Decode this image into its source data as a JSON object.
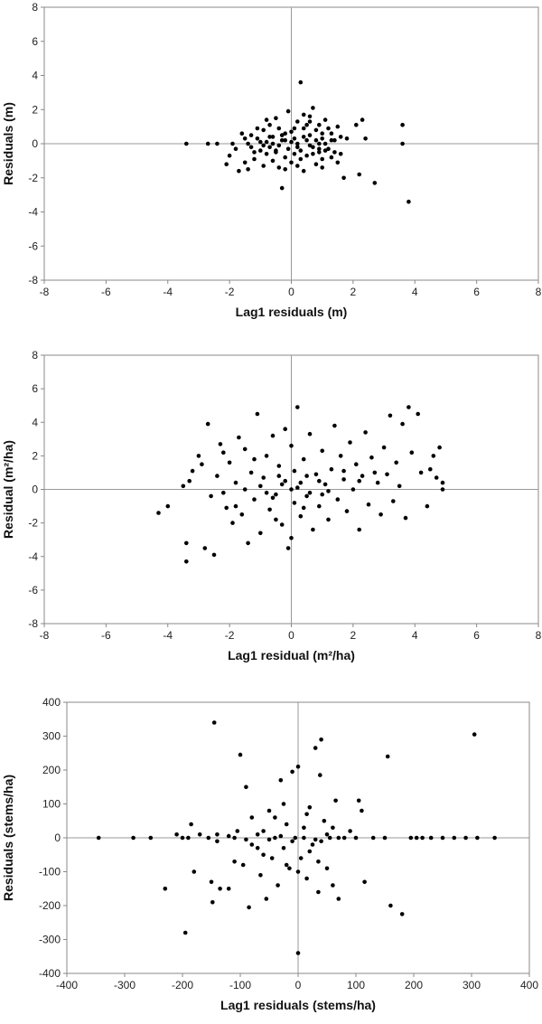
{
  "chart_data": [
    {
      "type": "scatter",
      "xlabel": "Lag1 residuals (m)",
      "ylabel": "Residuals (m)",
      "xlim": [
        -8,
        8
      ],
      "ylim": [
        -8,
        8
      ],
      "xticks": [
        -8,
        -6,
        -4,
        -2,
        0,
        2,
        4,
        6,
        8
      ],
      "yticks": [
        -8,
        -6,
        -4,
        -2,
        0,
        2,
        4,
        6,
        8
      ],
      "grid": false,
      "points": [
        [
          -3.4,
          0
        ],
        [
          -2.7,
          0
        ],
        [
          -2.4,
          0
        ],
        [
          -2.1,
          -1.2
        ],
        [
          -1.9,
          0
        ],
        [
          -1.7,
          -1.6
        ],
        [
          -1.6,
          0.6
        ],
        [
          -1.5,
          -1.1
        ],
        [
          -1.4,
          0
        ],
        [
          -1.3,
          0.5
        ],
        [
          -1.2,
          -0.9
        ],
        [
          -1.1,
          0.3
        ],
        [
          -1.0,
          -0.4
        ],
        [
          -0.9,
          0.8
        ],
        [
          -0.9,
          -1.3
        ],
        [
          -0.8,
          0.1
        ],
        [
          -0.8,
          -0.6
        ],
        [
          -0.7,
          1.1
        ],
        [
          -0.7,
          -0.2
        ],
        [
          -0.6,
          0.4
        ],
        [
          -0.6,
          -1.0
        ],
        [
          -0.5,
          1.5
        ],
        [
          -0.5,
          -0.5
        ],
        [
          -0.4,
          0.9
        ],
        [
          -0.4,
          -1.4
        ],
        [
          -0.3,
          0.2
        ],
        [
          -0.3,
          -2.6
        ],
        [
          -0.2,
          0.6
        ],
        [
          -0.2,
          -0.8
        ],
        [
          -0.1,
          1.9
        ],
        [
          -0.1,
          -0.3
        ],
        [
          0.0,
          0.7
        ],
        [
          0.0,
          -1.1
        ],
        [
          0.1,
          0.3
        ],
        [
          0.1,
          -0.6
        ],
        [
          0.2,
          1.3
        ],
        [
          0.2,
          0
        ],
        [
          0.3,
          3.6
        ],
        [
          0.3,
          -0.4
        ],
        [
          0.4,
          0.9
        ],
        [
          0.4,
          -1.6
        ],
        [
          0.5,
          0.2
        ],
        [
          0.5,
          -0.7
        ],
        [
          0.6,
          1.6
        ],
        [
          0.6,
          0.5
        ],
        [
          0.7,
          -0.2
        ],
        [
          0.7,
          2.1
        ],
        [
          0.8,
          -1.2
        ],
        [
          0.8,
          0.8
        ],
        [
          0.9,
          -0.5
        ],
        [
          0.9,
          1.1
        ],
        [
          1.0,
          0.3
        ],
        [
          1.0,
          -0.9
        ],
        [
          1.1,
          1.4
        ],
        [
          1.1,
          0
        ],
        [
          1.2,
          -0.3
        ],
        [
          1.3,
          0.6
        ],
        [
          1.3,
          -0.8
        ],
        [
          1.4,
          0.2
        ],
        [
          1.5,
          1.0
        ],
        [
          1.5,
          -1.1
        ],
        [
          1.6,
          0.4
        ],
        [
          1.7,
          -2.0
        ],
        [
          1.8,
          0.3
        ],
        [
          2.1,
          1.1
        ],
        [
          2.2,
          -1.8
        ],
        [
          2.3,
          1.4
        ],
        [
          2.4,
          0.3
        ],
        [
          2.7,
          -2.3
        ],
        [
          3.6,
          1.1
        ],
        [
          3.6,
          0
        ],
        [
          3.8,
          -3.4
        ],
        [
          -1.3,
          -0.2
        ],
        [
          -1.0,
          0.1
        ],
        [
          -0.7,
          0.4
        ],
        [
          -0.4,
          -0.1
        ],
        [
          -0.2,
          0.2
        ],
        [
          0.0,
          0.1
        ],
        [
          0.2,
          -0.2
        ],
        [
          0.4,
          0.4
        ],
        [
          0.6,
          -0.1
        ],
        [
          0.8,
          0.2
        ],
        [
          1.0,
          0.6
        ],
        [
          1.2,
          0.9
        ],
        [
          -1.5,
          0.3
        ],
        [
          -1.2,
          -0.5
        ],
        [
          -0.9,
          -0.1
        ],
        [
          -0.6,
          0
        ],
        [
          -0.3,
          0.5
        ],
        [
          0.1,
          0.9
        ],
        [
          0.3,
          -0.9
        ],
        [
          0.5,
          1.1
        ],
        [
          0.7,
          -0.6
        ],
        [
          0.9,
          0.0
        ],
        [
          1.1,
          -0.4
        ],
        [
          1.3,
          0.2
        ],
        [
          -1.8,
          -0.3
        ],
        [
          -1.1,
          0.9
        ],
        [
          -0.5,
          -0.4
        ],
        [
          0.2,
          -1.3
        ],
        [
          0.6,
          1.3
        ],
        [
          1.0,
          -1.4
        ],
        [
          1.4,
          -0.5
        ],
        [
          -0.8,
          1.4
        ],
        [
          -0.2,
          -1.5
        ],
        [
          0.4,
          1.7
        ],
        [
          0.9,
          -0.3
        ],
        [
          1.6,
          -0.6
        ],
        [
          -2.0,
          -0.7
        ],
        [
          -1.4,
          -1.5
        ]
      ]
    },
    {
      "type": "scatter",
      "xlabel": "Lag1 residual (m²/ha)",
      "ylabel": "Residual (m²/ha)",
      "xlim": [
        -8,
        8
      ],
      "ylim": [
        -8,
        8
      ],
      "xticks": [
        -8,
        -6,
        -4,
        -2,
        0,
        2,
        4,
        6,
        8
      ],
      "yticks": [
        -8,
        -6,
        -4,
        -2,
        0,
        2,
        4,
        6,
        8
      ],
      "grid": false,
      "points": [
        [
          -4.3,
          -1.4
        ],
        [
          -4.0,
          -1.0
        ],
        [
          -3.5,
          0.2
        ],
        [
          -3.4,
          -3.2
        ],
        [
          -3.4,
          -4.3
        ],
        [
          -3.3,
          0.5
        ],
        [
          -3.2,
          1.1
        ],
        [
          -3.0,
          2.0
        ],
        [
          -2.9,
          1.5
        ],
        [
          -2.8,
          -3.5
        ],
        [
          -2.7,
          3.9
        ],
        [
          -2.6,
          -0.4
        ],
        [
          -2.5,
          -3.9
        ],
        [
          -2.4,
          0.8
        ],
        [
          -2.3,
          2.7
        ],
        [
          -2.2,
          2.2
        ],
        [
          -2.1,
          -1.1
        ],
        [
          -2.0,
          1.6
        ],
        [
          -1.9,
          -2.0
        ],
        [
          -1.8,
          0.4
        ],
        [
          -1.7,
          3.1
        ],
        [
          -1.6,
          -1.5
        ],
        [
          -1.5,
          2.4
        ],
        [
          -1.4,
          -3.2
        ],
        [
          -1.3,
          1.0
        ],
        [
          -1.2,
          -0.6
        ],
        [
          -1.1,
          4.5
        ],
        [
          -1.0,
          -2.6
        ],
        [
          -0.9,
          0.7
        ],
        [
          -0.8,
          2.0
        ],
        [
          -0.7,
          -1.2
        ],
        [
          -0.6,
          3.2
        ],
        [
          -0.5,
          -0.3
        ],
        [
          -0.4,
          1.4
        ],
        [
          -0.3,
          -2.1
        ],
        [
          -0.2,
          0.5
        ],
        [
          -0.1,
          -3.5
        ],
        [
          0.0,
          2.6
        ],
        [
          0.1,
          -0.8
        ],
        [
          0.2,
          4.9
        ],
        [
          0.2,
          0.1
        ],
        [
          0.3,
          -1.6
        ],
        [
          0.4,
          1.8
        ],
        [
          0.5,
          -0.4
        ],
        [
          0.6,
          3.3
        ],
        [
          0.7,
          -2.4
        ],
        [
          0.8,
          0.9
        ],
        [
          0.9,
          -1.0
        ],
        [
          1.0,
          2.3
        ],
        [
          1.1,
          0.3
        ],
        [
          1.2,
          -1.8
        ],
        [
          1.3,
          1.2
        ],
        [
          1.4,
          3.8
        ],
        [
          1.5,
          -0.6
        ],
        [
          1.6,
          2.0
        ],
        [
          1.7,
          0.6
        ],
        [
          1.8,
          -1.3
        ],
        [
          1.9,
          2.8
        ],
        [
          2.0,
          0.0
        ],
        [
          2.1,
          1.5
        ],
        [
          2.2,
          -2.4
        ],
        [
          2.3,
          0.8
        ],
        [
          2.4,
          3.4
        ],
        [
          2.5,
          -0.9
        ],
        [
          2.6,
          1.9
        ],
        [
          2.8,
          0.4
        ],
        [
          2.9,
          -1.5
        ],
        [
          3.0,
          2.5
        ],
        [
          3.1,
          0.9
        ],
        [
          3.2,
          4.4
        ],
        [
          3.3,
          -0.7
        ],
        [
          3.4,
          1.6
        ],
        [
          3.5,
          0.2
        ],
        [
          3.6,
          3.9
        ],
        [
          3.7,
          -1.7
        ],
        [
          3.8,
          4.9
        ],
        [
          3.9,
          2.2
        ],
        [
          4.1,
          4.5
        ],
        [
          4.2,
          1.0
        ],
        [
          4.4,
          -1.0
        ],
        [
          4.6,
          2.0
        ],
        [
          4.7,
          0.7
        ],
        [
          4.8,
          2.5
        ],
        [
          4.9,
          0.4
        ],
        [
          4.9,
          0.0
        ],
        [
          4.5,
          1.2
        ],
        [
          -1.5,
          0.0
        ],
        [
          -1.0,
          0.2
        ],
        [
          -0.6,
          -0.5
        ],
        [
          -0.3,
          0.3
        ],
        [
          0.0,
          0.0
        ],
        [
          0.3,
          0.4
        ],
        [
          0.6,
          -0.2
        ],
        [
          0.9,
          0.5
        ],
        [
          1.2,
          -0.1
        ],
        [
          -0.8,
          -0.2
        ],
        [
          -0.4,
          0.8
        ],
        [
          0.1,
          1.1
        ],
        [
          0.5,
          0.8
        ],
        [
          -1.2,
          1.8
        ],
        [
          -0.5,
          -1.8
        ],
        [
          0.4,
          -1.1
        ],
        [
          1.0,
          -0.3
        ],
        [
          1.7,
          1.1
        ],
        [
          2.2,
          0.5
        ],
        [
          2.7,
          1.0
        ],
        [
          -1.8,
          -1.0
        ],
        [
          -2.2,
          -0.2
        ],
        [
          0.0,
          -2.9
        ],
        [
          -0.2,
          3.6
        ]
      ]
    },
    {
      "type": "scatter",
      "xlabel": "Lag1 residuals (stems/ha)",
      "ylabel": "Residuals (stems/ha)",
      "xlim": [
        -400,
        400
      ],
      "ylim": [
        -400,
        400
      ],
      "xticks": [
        -400,
        -300,
        -200,
        -100,
        0,
        100,
        200,
        300,
        400
      ],
      "yticks": [
        -400,
        -300,
        -200,
        -100,
        0,
        100,
        200,
        300,
        400
      ],
      "grid": false,
      "points": [
        [
          -345,
          0
        ],
        [
          -285,
          0
        ],
        [
          -255,
          0
        ],
        [
          -230,
          -150
        ],
        [
          -210,
          10
        ],
        [
          -200,
          0
        ],
        [
          -195,
          -280
        ],
        [
          -190,
          0
        ],
        [
          -185,
          40
        ],
        [
          -180,
          -100
        ],
        [
          -155,
          0
        ],
        [
          -150,
          -130
        ],
        [
          -148,
          -190
        ],
        [
          -145,
          340
        ],
        [
          -140,
          10
        ],
        [
          -135,
          -150
        ],
        [
          -120,
          -150
        ],
        [
          -110,
          0
        ],
        [
          -105,
          20
        ],
        [
          -100,
          245
        ],
        [
          -95,
          -80
        ],
        [
          -90,
          150
        ],
        [
          -85,
          -205
        ],
        [
          -80,
          60
        ],
        [
          -70,
          -30
        ],
        [
          -65,
          -110
        ],
        [
          -60,
          20
        ],
        [
          -55,
          -180
        ],
        [
          -50,
          80
        ],
        [
          -45,
          -60
        ],
        [
          -40,
          0
        ],
        [
          -35,
          -140
        ],
        [
          -30,
          170
        ],
        [
          -25,
          -30
        ],
        [
          -20,
          40
        ],
        [
          -15,
          -90
        ],
        [
          -10,
          195
        ],
        [
          -5,
          0
        ],
        [
          0,
          -340
        ],
        [
          0,
          210
        ],
        [
          5,
          -60
        ],
        [
          10,
          30
        ],
        [
          15,
          -120
        ],
        [
          20,
          90
        ],
        [
          25,
          -20
        ],
        [
          30,
          265
        ],
        [
          35,
          -160
        ],
        [
          38,
          185
        ],
        [
          40,
          290
        ],
        [
          45,
          50
        ],
        [
          50,
          -90
        ],
        [
          55,
          0
        ],
        [
          60,
          -140
        ],
        [
          65,
          110
        ],
        [
          70,
          -180
        ],
        [
          80,
          0
        ],
        [
          90,
          20
        ],
        [
          100,
          0
        ],
        [
          105,
          110
        ],
        [
          110,
          80
        ],
        [
          115,
          -130
        ],
        [
          130,
          0
        ],
        [
          150,
          0
        ],
        [
          155,
          240
        ],
        [
          160,
          -200
        ],
        [
          180,
          -225
        ],
        [
          195,
          0
        ],
        [
          205,
          0
        ],
        [
          215,
          0
        ],
        [
          230,
          0
        ],
        [
          250,
          0
        ],
        [
          270,
          0
        ],
        [
          290,
          0
        ],
        [
          305,
          305
        ],
        [
          310,
          0
        ],
        [
          340,
          0
        ],
        [
          -170,
          10
        ],
        [
          -140,
          -10
        ],
        [
          -120,
          5
        ],
        [
          -90,
          -5
        ],
        [
          -70,
          10
        ],
        [
          -50,
          -5
        ],
        [
          -30,
          5
        ],
        [
          -10,
          -10
        ],
        [
          10,
          0
        ],
        [
          30,
          -5
        ],
        [
          50,
          10
        ],
        [
          70,
          0
        ],
        [
          -60,
          -50
        ],
        [
          -20,
          -80
        ],
        [
          20,
          -40
        ],
        [
          40,
          -10
        ],
        [
          60,
          30
        ],
        [
          -40,
          60
        ],
        [
          -80,
          -20
        ],
        [
          0,
          -100
        ],
        [
          -110,
          -70
        ],
        [
          35,
          -70
        ],
        [
          -25,
          100
        ],
        [
          15,
          70
        ]
      ]
    }
  ]
}
